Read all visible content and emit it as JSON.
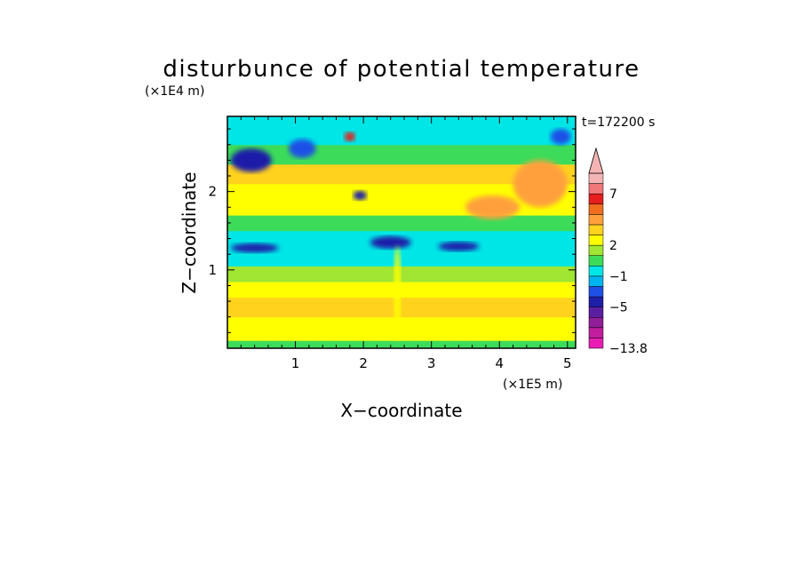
{
  "chart_data": {
    "type": "heatmap",
    "title": "disturbunce of potential temperature",
    "xlabel": "X−coordinate",
    "ylabel": "Z−coordinate",
    "x_scale_label": "(×1E5 m)",
    "y_scale_label": "(×1E4 m)",
    "time_label": "t=172200 s",
    "xlim": [
      0,
      5.12
    ],
    "ylim": [
      0,
      2.96
    ],
    "x_ticks": [
      1,
      2,
      3,
      4,
      5
    ],
    "y_ticks": [
      1,
      2
    ],
    "colorbar": {
      "labels": [
        "7",
        "2",
        "−1",
        "−5",
        "−13.8"
      ],
      "label_values": [
        7,
        2,
        -1,
        -5,
        -13.8
      ],
      "max_arrow": true,
      "bands": [
        {
          "min": -13.8,
          "max": -11,
          "color": "#e81eb4"
        },
        {
          "min": -11,
          "max": -9,
          "color": "#c01e9c"
        },
        {
          "min": -9,
          "max": -7,
          "color": "#901e98"
        },
        {
          "min": -7,
          "max": -5,
          "color": "#5a1ea0"
        },
        {
          "min": -5,
          "max": -3,
          "color": "#1e1ea8"
        },
        {
          "min": -3,
          "max": -2,
          "color": "#1e50e6"
        },
        {
          "min": -2,
          "max": -1,
          "color": "#00b4f0"
        },
        {
          "min": -1,
          "max": 0,
          "color": "#00e6e6"
        },
        {
          "min": 0,
          "max": 1,
          "color": "#3cdc5a"
        },
        {
          "min": 1,
          "max": 2,
          "color": "#a0e632"
        },
        {
          "min": 2,
          "max": 3,
          "color": "#ffff00"
        },
        {
          "min": 3,
          "max": 4,
          "color": "#ffd21e"
        },
        {
          "min": 4,
          "max": 5,
          "color": "#ffa03c"
        },
        {
          "min": 5,
          "max": 6,
          "color": "#f06e1e"
        },
        {
          "min": 6,
          "max": 7,
          "color": "#e61e1e"
        },
        {
          "min": 7,
          "max": 8,
          "color": "#f07878"
        },
        {
          "min": 8,
          "max": 11,
          "color": "#f5b4b4"
        }
      ]
    },
    "layers": [
      {
        "z": [
          0,
          0.1
        ],
        "value": 0.5,
        "note": "green"
      },
      {
        "z": [
          0.1,
          0.4
        ],
        "value": 2.5,
        "note": "yellow"
      },
      {
        "z": [
          0.4,
          0.65
        ],
        "value": 3.5,
        "note": "gold"
      },
      {
        "z": [
          0.65,
          0.85
        ],
        "value": 2.5,
        "note": "yellow"
      },
      {
        "z": [
          0.85,
          1.05
        ],
        "value": 1.5,
        "note": "lime"
      },
      {
        "z": [
          1.05,
          1.5
        ],
        "value": -0.5,
        "note": "cyan"
      },
      {
        "z": [
          1.5,
          1.7
        ],
        "value": 0.5,
        "note": "green"
      },
      {
        "z": [
          1.7,
          2.1
        ],
        "value": 2.5,
        "note": "yellow"
      },
      {
        "z": [
          2.1,
          2.35
        ],
        "value": 3.5,
        "note": "orange"
      },
      {
        "z": [
          2.35,
          2.6
        ],
        "value": 0.5,
        "note": "green"
      },
      {
        "z": [
          2.6,
          2.96
        ],
        "value": -0.5,
        "note": "cyan"
      }
    ],
    "blobs": [
      {
        "x": 0.35,
        "z": 2.4,
        "rx": 0.3,
        "rz": 0.15,
        "value": -4
      },
      {
        "x": 1.1,
        "z": 2.55,
        "rx": 0.2,
        "rz": 0.12,
        "value": -2.5
      },
      {
        "x": 0.4,
        "z": 1.28,
        "rx": 0.35,
        "rz": 0.06,
        "value": -4
      },
      {
        "x": 2.4,
        "z": 1.35,
        "rx": 0.3,
        "rz": 0.08,
        "value": -4
      },
      {
        "x": 3.4,
        "z": 1.3,
        "rx": 0.3,
        "rz": 0.06,
        "value": -4
      },
      {
        "x": 1.95,
        "z": 1.95,
        "rx": 0.1,
        "rz": 0.06,
        "value": -4
      },
      {
        "x": 1.8,
        "z": 2.7,
        "rx": 0.08,
        "rz": 0.06,
        "value": 6.5
      },
      {
        "x": 2.5,
        "z": 0.7,
        "rx": 0.05,
        "rz": 0.6,
        "value": 2.5
      },
      {
        "x": 4.6,
        "z": 2.1,
        "rx": 0.4,
        "rz": 0.3,
        "value": 4.5
      },
      {
        "x": 3.9,
        "z": 1.8,
        "rx": 0.4,
        "rz": 0.15,
        "value": 4.5
      },
      {
        "x": 4.9,
        "z": 2.7,
        "rx": 0.15,
        "rz": 0.1,
        "value": -2.5
      }
    ]
  }
}
